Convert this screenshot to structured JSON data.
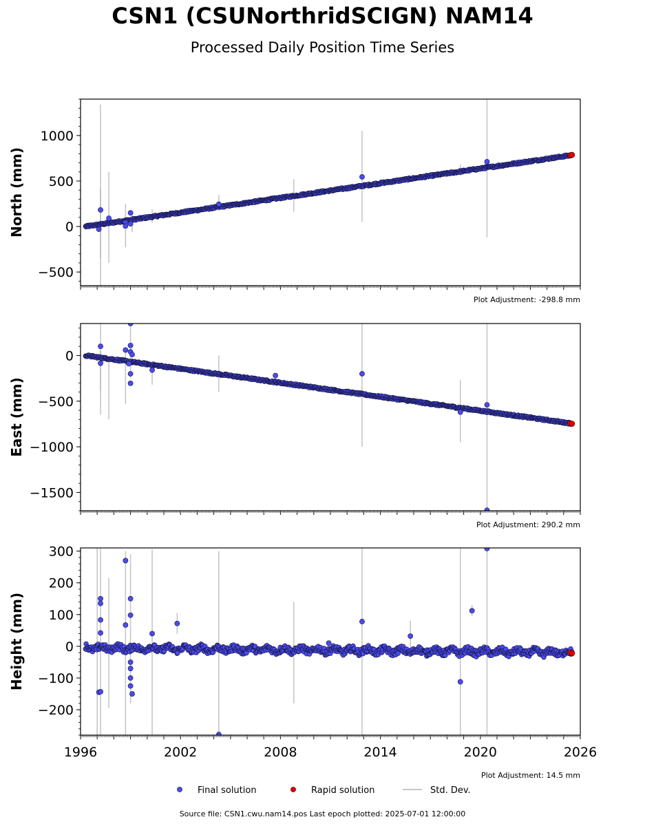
{
  "header": {
    "title": "CSN1 (CSUNorthridSCIGN) NAM14",
    "subtitle": "Processed Daily Position Time Series"
  },
  "footer": {
    "source": "Source file: CSN1.cwu.nam14.pos  Last epoch plotted: 2025-07-01 12:00:00"
  },
  "legend": {
    "final": "Final solution",
    "rapid": "Rapid solution",
    "stddev": "Std. Dev."
  },
  "colors": {
    "final": "#4b4bf0",
    "final_edge": "#14143c",
    "rapid": "#e30000",
    "stddev": "#b4b4b4"
  },
  "chart_data": [
    {
      "type": "scatter",
      "ylabel": "North (mm)",
      "adjustment": "Plot Adjustment: -298.8 mm",
      "xlim": [
        1996.0,
        2026.0
      ],
      "ylim": [
        -650,
        1400
      ],
      "yticks": [
        -500,
        0,
        500,
        1000
      ],
      "trend": [
        [
          1996.3,
          0
        ],
        [
          2025.5,
          785
        ]
      ],
      "final_outliers": [
        [
          1997.2,
          182
        ],
        [
          1997.1,
          -30
        ],
        [
          1997.7,
          90
        ],
        [
          1998.7,
          45
        ],
        [
          1999.0,
          150
        ],
        [
          1999.0,
          30
        ],
        [
          1998.7,
          5
        ],
        [
          2004.3,
          245
        ],
        [
          2012.9,
          545
        ],
        [
          2020.4,
          712
        ]
      ],
      "error_bars": [
        [
          1997.2,
          -650,
          1340
        ],
        [
          1997.2,
          -350,
          420
        ],
        [
          1997.7,
          -400,
          600
        ],
        [
          1998.7,
          -230,
          250
        ],
        [
          1999.1,
          -60,
          150
        ],
        [
          2000.3,
          40,
          190
        ],
        [
          2004.3,
          170,
          350
        ],
        [
          2008.8,
          160,
          520
        ],
        [
          2012.9,
          50,
          1050
        ],
        [
          2018.8,
          560,
          680
        ],
        [
          2020.4,
          -120,
          1400
        ]
      ],
      "rapid": [
        [
          2025.4,
          783
        ],
        [
          2025.5,
          787
        ]
      ]
    },
    {
      "type": "scatter",
      "ylabel": "East (mm)",
      "adjustment": "Plot Adjustment: 290.2 mm",
      "xlim": [
        1996.0,
        2026.0
      ],
      "ylim": [
        -1700,
        350
      ],
      "yticks": [
        -1500,
        -1000,
        -500,
        0
      ],
      "trend": [
        [
          1996.3,
          0
        ],
        [
          2025.5,
          -745
        ]
      ],
      "final_outliers": [
        [
          1997.2,
          100
        ],
        [
          1997.2,
          -85
        ],
        [
          1998.7,
          60
        ],
        [
          1999.0,
          350
        ],
        [
          1999.0,
          110
        ],
        [
          1999.0,
          40
        ],
        [
          1999.1,
          10
        ],
        [
          1998.9,
          -90
        ],
        [
          1999.0,
          -200
        ],
        [
          1999.0,
          -305
        ],
        [
          2000.3,
          -160
        ],
        [
          2007.7,
          -220
        ],
        [
          2012.9,
          -200
        ],
        [
          2018.8,
          -620
        ],
        [
          2020.4,
          -540
        ],
        [
          2020.4,
          -1695
        ]
      ],
      "error_bars": [
        [
          1997.2,
          -650,
          350
        ],
        [
          1997.2,
          -380,
          50
        ],
        [
          1997.7,
          -700,
          -10
        ],
        [
          1998.7,
          -530,
          80
        ],
        [
          1999.0,
          -250,
          350
        ],
        [
          2000.3,
          -320,
          -90
        ],
        [
          2004.3,
          -400,
          0
        ],
        [
          2012.9,
          -1000,
          350
        ],
        [
          2018.8,
          -950,
          -270
        ],
        [
          2020.4,
          -1700,
          350
        ]
      ],
      "rapid": [
        [
          2025.4,
          -743
        ],
        [
          2025.5,
          -747
        ]
      ]
    },
    {
      "type": "scatter",
      "ylabel": "Height (mm)",
      "adjustment": "Plot Adjustment: 14.5 mm",
      "xlim": [
        1996.0,
        2026.0
      ],
      "ylim": [
        -280,
        310
      ],
      "yticks": [
        -200,
        -100,
        0,
        100,
        200,
        300
      ],
      "xticks": [
        1996,
        2002,
        2008,
        2014,
        2020,
        2026
      ],
      "trend": [
        [
          1996.3,
          -5
        ],
        [
          2025.5,
          -20
        ]
      ],
      "final_outliers": [
        [
          1997.2,
          150
        ],
        [
          1997.2,
          135
        ],
        [
          1997.2,
          83
        ],
        [
          1997.2,
          42
        ],
        [
          1997.1,
          -145
        ],
        [
          1997.2,
          -143
        ],
        [
          1998.7,
          270
        ],
        [
          1998.7,
          67
        ],
        [
          1999.0,
          150
        ],
        [
          1999.0,
          98
        ],
        [
          1999.0,
          -50
        ],
        [
          1999.0,
          -70
        ],
        [
          1999.0,
          -100
        ],
        [
          1999.0,
          -125
        ],
        [
          1999.1,
          -150
        ],
        [
          2000.3,
          40
        ],
        [
          2001.8,
          72
        ],
        [
          2004.3,
          -278
        ],
        [
          2010.9,
          10
        ],
        [
          2012.9,
          78
        ],
        [
          2015.8,
          32
        ],
        [
          2018.8,
          -112
        ],
        [
          2019.5,
          112
        ],
        [
          2020.4,
          308
        ]
      ],
      "error_bars": [
        [
          1997.2,
          -280,
          310
        ],
        [
          1997.0,
          -280,
          310
        ],
        [
          1997.7,
          -195,
          215
        ],
        [
          1998.7,
          -280,
          300
        ],
        [
          1999.0,
          -180,
          290
        ],
        [
          2000.3,
          -280,
          305
        ],
        [
          2001.8,
          40,
          105
        ],
        [
          2004.3,
          -280,
          300
        ],
        [
          2008.8,
          -180,
          140
        ],
        [
          2012.9,
          -280,
          310
        ],
        [
          2015.8,
          -20,
          80
        ],
        [
          2018.8,
          -280,
          310
        ],
        [
          2019.5,
          95,
          130
        ],
        [
          2020.4,
          -280,
          310
        ]
      ],
      "rapid": [
        [
          2025.4,
          -20
        ],
        [
          2025.5,
          -22
        ]
      ]
    }
  ]
}
